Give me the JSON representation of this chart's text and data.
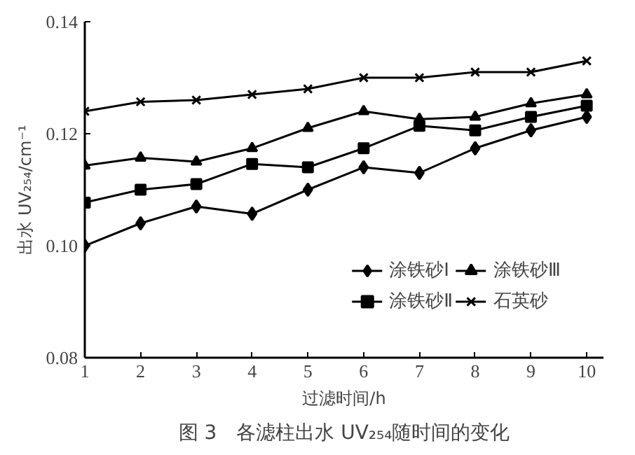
{
  "chart_data": {
    "type": "line",
    "title": "图 3　各滤柱出水 UV₂₅₄随时间的变化",
    "xlabel": "过滤时间/h",
    "ylabel": "出水 UV₂₅₄/cm⁻¹",
    "x": [
      1,
      2,
      3,
      4,
      5,
      6,
      7,
      8,
      9,
      10
    ],
    "xlim": [
      1,
      10.3
    ],
    "xticks": [
      1,
      2,
      3,
      4,
      5,
      6,
      7,
      8,
      9,
      10
    ],
    "ylim": [
      0.08,
      0.14
    ],
    "yticks": [
      {
        "value": 0.08,
        "label": "0.08"
      },
      {
        "value": 0.1,
        "label": "0.10"
      },
      {
        "value": 0.12,
        "label": "0.12"
      },
      {
        "value": 0.14,
        "label": "0.14"
      }
    ],
    "grid": false,
    "legend": "bottom right",
    "line_style": "solid",
    "series": [
      {
        "name": "涂铁砂Ⅰ",
        "color": "#000000",
        "marker": "diamond",
        "values": [
          0.1,
          0.104,
          0.107,
          0.1057,
          0.11,
          0.114,
          0.113,
          0.1174,
          0.1206,
          0.123
        ]
      },
      {
        "name": "涂铁砂Ⅱ",
        "color": "#000000",
        "marker": "square",
        "values": [
          0.1077,
          0.11,
          0.111,
          0.1146,
          0.114,
          0.1174,
          0.1214,
          0.1206,
          0.123,
          0.125
        ]
      },
      {
        "name": "涂铁砂Ⅲ",
        "color": "#000000",
        "marker": "triangle",
        "values": [
          0.1143,
          0.1157,
          0.115,
          0.1174,
          0.121,
          0.124,
          0.1226,
          0.123,
          0.1254,
          0.127
        ]
      },
      {
        "name": "石英砂",
        "color": "#000000",
        "marker": "cross",
        "values": [
          0.124,
          0.1257,
          0.126,
          0.127,
          0.128,
          0.13,
          0.13,
          0.131,
          0.131,
          0.133
        ]
      }
    ]
  }
}
